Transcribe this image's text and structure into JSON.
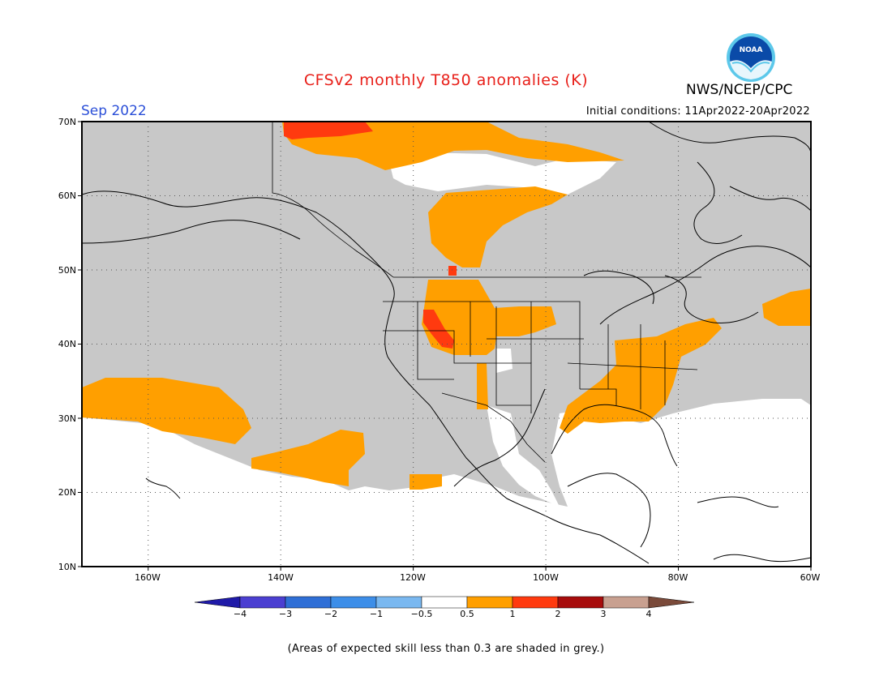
{
  "title": "CFSv2 monthly T850 anomalies (K)",
  "organization": "NWS/NCEP/CPC",
  "logo_text": "NOAA",
  "month": "Sep 2022",
  "initial_conditions": "Initial conditions: 11Apr2022-20Apr2022",
  "note": "(Areas of expected skill less than 0.3 are shaded in grey.)",
  "map": {
    "lon_range": [
      -170,
      -60
    ],
    "lat_range": [
      10,
      70
    ],
    "lat_labels": [
      "70N",
      "60N",
      "50N",
      "40N",
      "30N",
      "20N",
      "10N"
    ],
    "lon_labels": [
      "160W",
      "140W",
      "120W",
      "100W",
      "80W",
      "60W"
    ],
    "grid": true,
    "colors": {
      "low_skill_grey": "#c8c8c8",
      "anom_0_5_to_1": "#ff9f00",
      "anom_1_to_2": "#ff3a0f",
      "background": "#ffffff"
    }
  },
  "colorbar": {
    "labels": [
      "−4",
      "−3",
      "−2",
      "−1",
      "−0.5",
      "0.5",
      "1",
      "2",
      "3",
      "4"
    ],
    "colors": [
      "#1f1aa8",
      "#4b3fd1",
      "#2f6fd6",
      "#3d8ee8",
      "#7ab8f0",
      "#ffffff",
      "#ff9f00",
      "#ff3a0f",
      "#a70c0c",
      "#c8a090",
      "#7a4a3a"
    ]
  }
}
